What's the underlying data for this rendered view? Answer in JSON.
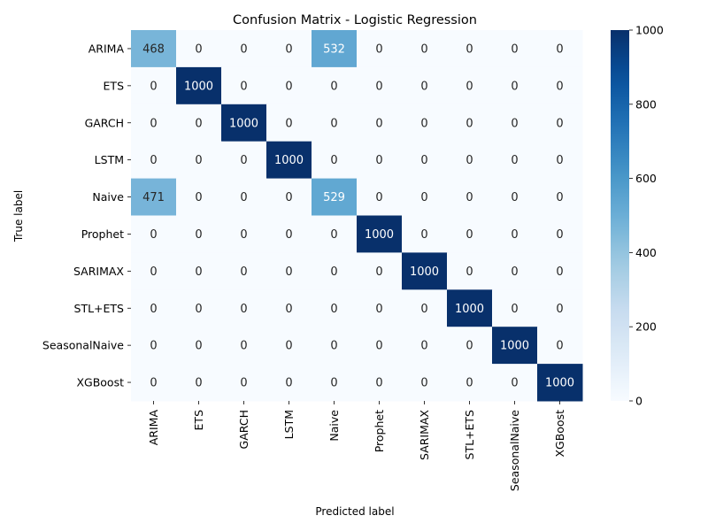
{
  "chart_data": {
    "type": "heatmap",
    "title": "Confusion Matrix - Logistic Regression",
    "xlabel": "Predicted label",
    "ylabel": "True label",
    "x_categories": [
      "ARIMA",
      "ETS",
      "GARCH",
      "LSTM",
      "Naive",
      "Prophet",
      "SARIMAX",
      "STL+ETS",
      "SeasonalNaive",
      "XGBoost"
    ],
    "y_categories": [
      "ARIMA",
      "ETS",
      "GARCH",
      "LSTM",
      "Naive",
      "Prophet",
      "SARIMAX",
      "STL+ETS",
      "SeasonalNaive",
      "XGBoost"
    ],
    "matrix": [
      [
        468,
        0,
        0,
        0,
        532,
        0,
        0,
        0,
        0,
        0
      ],
      [
        0,
        1000,
        0,
        0,
        0,
        0,
        0,
        0,
        0,
        0
      ],
      [
        0,
        0,
        1000,
        0,
        0,
        0,
        0,
        0,
        0,
        0
      ],
      [
        0,
        0,
        0,
        1000,
        0,
        0,
        0,
        0,
        0,
        0
      ],
      [
        471,
        0,
        0,
        0,
        529,
        0,
        0,
        0,
        0,
        0
      ],
      [
        0,
        0,
        0,
        0,
        0,
        1000,
        0,
        0,
        0,
        0
      ],
      [
        0,
        0,
        0,
        0,
        0,
        0,
        1000,
        0,
        0,
        0
      ],
      [
        0,
        0,
        0,
        0,
        0,
        0,
        0,
        1000,
        0,
        0
      ],
      [
        0,
        0,
        0,
        0,
        0,
        0,
        0,
        0,
        1000,
        0
      ],
      [
        0,
        0,
        0,
        0,
        0,
        0,
        0,
        0,
        0,
        1000
      ]
    ],
    "colormap": "Blues",
    "color_range": [
      0,
      1000
    ],
    "colorbar_ticks": [
      0,
      200,
      400,
      600,
      800,
      1000
    ],
    "annotations": true,
    "grid": false
  }
}
